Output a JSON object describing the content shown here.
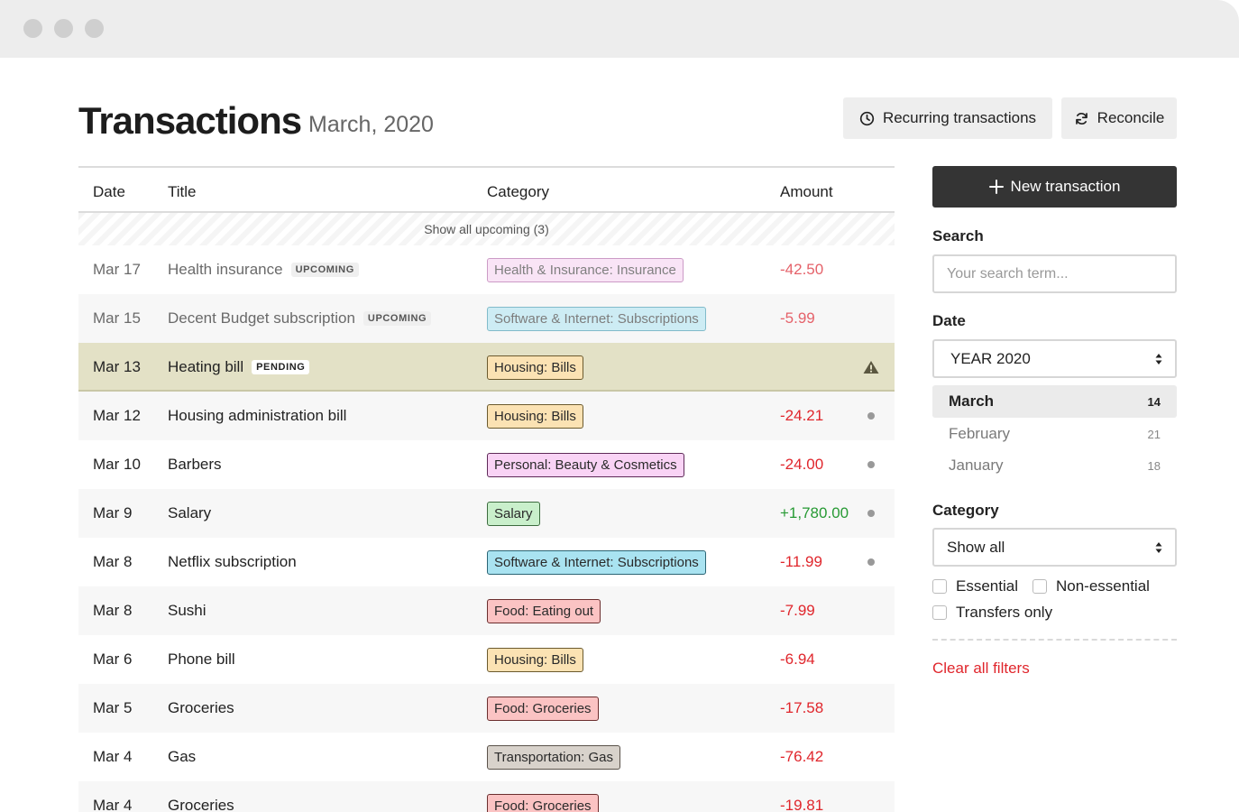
{
  "header": {
    "title": "Transactions",
    "subtitle": "March, 2020",
    "recurring_label": "Recurring transactions",
    "reconcile_label": "Reconcile"
  },
  "table": {
    "columns": {
      "date": "Date",
      "title": "Title",
      "category": "Category",
      "amount": "Amount"
    },
    "show_upcoming": "Show all upcoming (3)",
    "rows": [
      {
        "date": "Mar 17",
        "title": "Health insurance",
        "badge": "UPCOMING",
        "category": "Health & Insurance: Insurance",
        "amount": "-42.50",
        "state": "upcoming",
        "tag_bg": "#f8dcf4",
        "tag_border": "#bb7ab3",
        "tag_color": "#555555",
        "sign": "neg",
        "status": ""
      },
      {
        "date": "Mar 15",
        "title": "Decent Budget subscription",
        "badge": "UPCOMING",
        "category": "Software & Internet: Subscriptions",
        "amount": "-5.99",
        "state": "upcoming",
        "tag_bg": "#bfe9f3",
        "tag_border": "#5aa8bb",
        "tag_color": "#555555",
        "sign": "neg",
        "status": ""
      },
      {
        "date": "Mar 13",
        "title": "Heating bill",
        "badge": "PENDING",
        "category": "Housing: Bills",
        "amount": "",
        "state": "pending",
        "tag_bg": "#fbe2b3",
        "tag_border": "#6b5a2e",
        "tag_color": "#2a2a2a",
        "sign": "neg",
        "status": "warning"
      },
      {
        "date": "Mar 12",
        "title": "Housing administration bill",
        "badge": "",
        "category": "Housing: Bills",
        "amount": "-24.21",
        "state": "normal",
        "tag_bg": "#fbe2b3",
        "tag_border": "#6b5a2e",
        "tag_color": "#2a2a2a",
        "sign": "neg",
        "status": "dot"
      },
      {
        "date": "Mar 10",
        "title": "Barbers",
        "badge": "",
        "category": "Personal: Beauty & Cosmetics",
        "amount": "-24.00",
        "state": "normal",
        "tag_bg": "#f9d3f5",
        "tag_border": "#5e2a58",
        "tag_color": "#2a2a2a",
        "sign": "neg",
        "status": "dot"
      },
      {
        "date": "Mar 9",
        "title": "Salary",
        "badge": "",
        "category": "Salary",
        "amount": "+1,780.00",
        "state": "normal",
        "tag_bg": "#c9efcb",
        "tag_border": "#3c6b3e",
        "tag_color": "#2a2a2a",
        "sign": "pos",
        "status": "dot"
      },
      {
        "date": "Mar 8",
        "title": "Netflix subscription",
        "badge": "",
        "category": "Software & Internet: Subscriptions",
        "amount": "-11.99",
        "state": "normal",
        "tag_bg": "#a9e3f1",
        "tag_border": "#2b6575",
        "tag_color": "#2a2a2a",
        "sign": "neg",
        "status": "dot"
      },
      {
        "date": "Mar 8",
        "title": "Sushi",
        "badge": "",
        "category": "Food: Eating out",
        "amount": "-7.99",
        "state": "normal",
        "tag_bg": "#fbc3c3",
        "tag_border": "#6b2e2e",
        "tag_color": "#2a2a2a",
        "sign": "neg",
        "status": ""
      },
      {
        "date": "Mar 6",
        "title": "Phone bill",
        "badge": "",
        "category": "Housing: Bills",
        "amount": "-6.94",
        "state": "normal",
        "tag_bg": "#fbe2b3",
        "tag_border": "#6b5a2e",
        "tag_color": "#2a2a2a",
        "sign": "neg",
        "status": ""
      },
      {
        "date": "Mar 5",
        "title": "Groceries",
        "badge": "",
        "category": "Food: Groceries",
        "amount": "-17.58",
        "state": "normal",
        "tag_bg": "#fbc3c3",
        "tag_border": "#6b2e2e",
        "tag_color": "#2a2a2a",
        "sign": "neg",
        "status": ""
      },
      {
        "date": "Mar 4",
        "title": "Gas",
        "badge": "",
        "category": "Transportation: Gas",
        "amount": "-76.42",
        "state": "normal",
        "tag_bg": "#d8d2cb",
        "tag_border": "#5a524a",
        "tag_color": "#2a2a2a",
        "sign": "neg",
        "status": ""
      },
      {
        "date": "Mar 4",
        "title": "Groceries",
        "badge": "",
        "category": "Food: Groceries",
        "amount": "-19.81",
        "state": "normal",
        "tag_bg": "#fbc3c3",
        "tag_border": "#6b2e2e",
        "tag_color": "#2a2a2a",
        "sign": "neg",
        "status": ""
      }
    ]
  },
  "sidebar": {
    "new_transaction_label": "New transaction",
    "search_label": "Search",
    "search_placeholder": "Your search term...",
    "date_label": "Date",
    "year_value": "YEAR 2020",
    "months": [
      {
        "name": "March",
        "count": "14",
        "active": true
      },
      {
        "name": "February",
        "count": "21",
        "active": false
      },
      {
        "name": "January",
        "count": "18",
        "active": false
      }
    ],
    "category_label": "Category",
    "category_value": "Show all",
    "checks": {
      "essential": "Essential",
      "non_essential": "Non-essential",
      "transfers": "Transfers only"
    },
    "clear_label": "Clear all filters"
  }
}
